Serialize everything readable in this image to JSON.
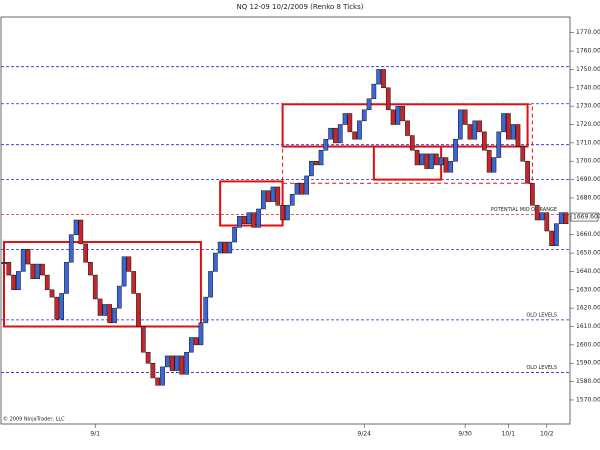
{
  "chart_data": {
    "type": "renko",
    "title": "NQ 12-09  10/2/2009 (Renko 8 Ticks)",
    "copyright": "© 2009 NinjaTrader, LLC",
    "values": [
      1645,
      1638,
      1630,
      1640,
      1652,
      1644,
      1636,
      1644,
      1638,
      1630,
      1626,
      1614,
      1628,
      1645,
      1660,
      1668,
      1655,
      1645,
      1638,
      1625,
      1616,
      1622,
      1612,
      1620,
      1632,
      1648,
      1640,
      1628,
      1610,
      1596,
      1590,
      1582,
      1578,
      1588,
      1594,
      1586,
      1594,
      1584,
      1596,
      1604,
      1600,
      1612,
      1626,
      1640,
      1650,
      1656,
      1650,
      1656,
      1664,
      1670,
      1666,
      1672,
      1664,
      1674,
      1684,
      1678,
      1686,
      1676,
      1668,
      1676,
      1682,
      1688,
      1682,
      1692,
      1700,
      1698,
      1706,
      1712,
      1718,
      1710,
      1720,
      1726,
      1716,
      1712,
      1722,
      1728,
      1734,
      1742,
      1750,
      1740,
      1728,
      1720,
      1730,
      1722,
      1714,
      1706,
      1698,
      1704,
      1696,
      1704,
      1698,
      1702,
      1694,
      1700,
      1712,
      1728,
      1720,
      1712,
      1722,
      1716,
      1706,
      1694,
      1702,
      1716,
      1726,
      1712,
      1720,
      1708,
      1700,
      1688,
      1676,
      1668,
      1672,
      1662,
      1654,
      1666,
      1672,
      1666
    ],
    "categories": [
      null,
      null,
      null,
      null,
      null,
      null,
      null,
      null,
      null,
      null,
      null,
      null,
      null,
      null,
      null,
      null,
      null,
      null,
      null,
      "9/1",
      null,
      null,
      null,
      null,
      null,
      null,
      null,
      null,
      null,
      null,
      null,
      null,
      null,
      null,
      null,
      null,
      null,
      null,
      null,
      null,
      null,
      null,
      null,
      null,
      null,
      null,
      null,
      null,
      null,
      null,
      null,
      null,
      null,
      null,
      null,
      null,
      null,
      null,
      null,
      null,
      null,
      null,
      null,
      null,
      null,
      null,
      null,
      null,
      null,
      null,
      null,
      null,
      null,
      null,
      null,
      "9/24",
      null,
      null,
      null,
      null,
      null,
      null,
      null,
      null,
      null,
      null,
      null,
      null,
      null,
      null,
      null,
      null,
      null,
      null,
      null,
      null,
      "9/30",
      null,
      null,
      null,
      null,
      null,
      null,
      null,
      null,
      "10/1",
      null,
      null,
      null,
      null,
      null,
      null,
      null,
      "10/2",
      null,
      null,
      null,
      null
    ],
    "up_color": "#3a66d8",
    "down_color": "#c4262b",
    "ylim": [
      1558,
      1778
    ],
    "yticks": [
      {
        "value": 1770,
        "label": "1770.00"
      },
      {
        "value": 1760,
        "label": "1760.00"
      },
      {
        "value": 1750,
        "label": "1750.00"
      },
      {
        "value": 1740,
        "label": "1740.00"
      },
      {
        "value": 1730,
        "label": "1730.00"
      },
      {
        "value": 1720,
        "label": "1720.00"
      },
      {
        "value": 1710,
        "label": "1710.00"
      },
      {
        "value": 1700,
        "label": "1700.00"
      },
      {
        "value": 1690,
        "label": "1690.00"
      },
      {
        "value": 1680,
        "label": "1680.00"
      },
      {
        "value": 1670,
        "label": "1670.00"
      },
      {
        "value": 1660,
        "label": "1660.00"
      },
      {
        "value": 1650,
        "label": "1650.00"
      },
      {
        "value": 1640,
        "label": "1640.00"
      },
      {
        "value": 1630,
        "label": "1630.00"
      },
      {
        "value": 1620,
        "label": "1620.00"
      },
      {
        "value": 1610,
        "label": "1610.00"
      },
      {
        "value": 1600,
        "label": "1600.00"
      },
      {
        "value": 1590,
        "label": "1590.00"
      },
      {
        "value": 1580,
        "label": "1580.00"
      },
      {
        "value": 1570,
        "label": "1570.00"
      }
    ],
    "levels": [
      {
        "value": 1751.5,
        "color": "#2323d8"
      },
      {
        "value": 1731.3,
        "color": "#2323d8"
      },
      {
        "value": 1709,
        "color": "#2323d8"
      },
      {
        "value": 1690,
        "color": "#2323d8"
      },
      {
        "value": 1671,
        "color": "#d82323",
        "label": "POTENTIAL MID OF RANGE"
      },
      {
        "value": 1652,
        "color": "#2323d8"
      },
      {
        "value": 1613.6,
        "color": "#2323d8",
        "label": "OLD LEVELS"
      },
      {
        "value": 1585,
        "color": "#2323d8",
        "label": "OLD LEVELS"
      }
    ],
    "boxes": [
      {
        "start": 0,
        "end": 41,
        "top": 1656,
        "bottom": 1610,
        "color": "#e01010"
      },
      {
        "start": 45,
        "end": 58,
        "top": 1689,
        "bottom": 1665,
        "color": "#e01010"
      },
      {
        "start": 58,
        "end": 109,
        "top": 1731,
        "bottom": 1708,
        "color": "#e01010"
      },
      {
        "start": 77,
        "end": 91,
        "top": 1708,
        "bottom": 1690,
        "color": "#e01010"
      },
      {
        "start": 58,
        "end": 110,
        "top": 1731,
        "bottom": 1688,
        "color": "#e01010",
        "dashed": true
      }
    ],
    "last": {
      "value": 1669.6,
      "label": "1669.60"
    }
  }
}
